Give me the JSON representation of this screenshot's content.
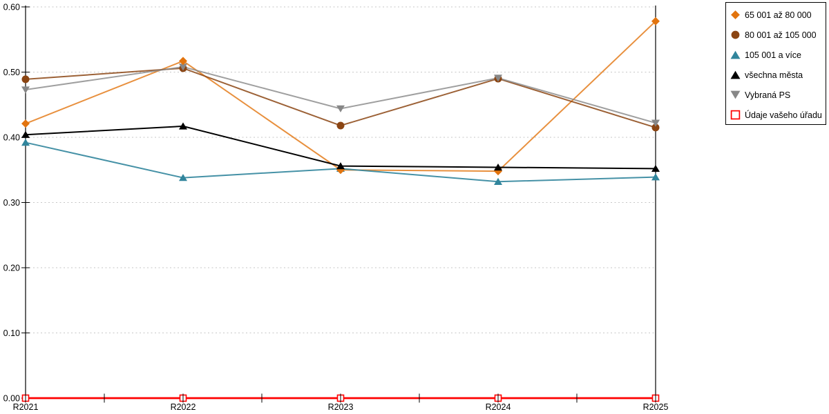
{
  "chart_data": {
    "type": "line",
    "title": "",
    "xlabel": "",
    "ylabel": "",
    "categories": [
      "R2021",
      "R2022",
      "R2023",
      "R2024",
      "R2025"
    ],
    "y_ticks": [
      "0.00",
      "0.10",
      "0.20",
      "0.30",
      "0.40",
      "0.50",
      "0.60"
    ],
    "ylim": [
      0,
      0.6
    ],
    "grid": "horizontal-dashed",
    "legend_position": "top-right",
    "series": [
      {
        "name": "65 001 až 80 000",
        "marker": "diamond",
        "color": "#E2740E",
        "values": [
          0.421,
          0.517,
          0.35,
          0.348,
          0.578
        ]
      },
      {
        "name": "80 001 až 105 000",
        "marker": "circle",
        "color": "#8B4513",
        "values": [
          0.489,
          0.506,
          0.418,
          0.49,
          0.415
        ]
      },
      {
        "name": "105 001 a více",
        "marker": "triangle-up",
        "color": "#31859C",
        "values": [
          0.392,
          0.338,
          0.352,
          0.332,
          0.339
        ]
      },
      {
        "name": "všechna města",
        "marker": "triangle-up",
        "color": "#000000",
        "values": [
          0.404,
          0.417,
          0.356,
          0.354,
          0.352
        ]
      },
      {
        "name": "Vybraná PS",
        "marker": "triangle-down",
        "color": "#878787",
        "values": [
          0.473,
          0.508,
          0.444,
          0.491,
          0.422
        ]
      },
      {
        "name": "Údaje vašeho úřadu",
        "marker": "square-open",
        "color": "#FE0000",
        "values": [
          0.0,
          0.0,
          0.0,
          0.0,
          0.0
        ]
      }
    ],
    "colors": {
      "axis": "#000000",
      "gridline": "#c6c6c6",
      "background": "#ffffff"
    }
  }
}
